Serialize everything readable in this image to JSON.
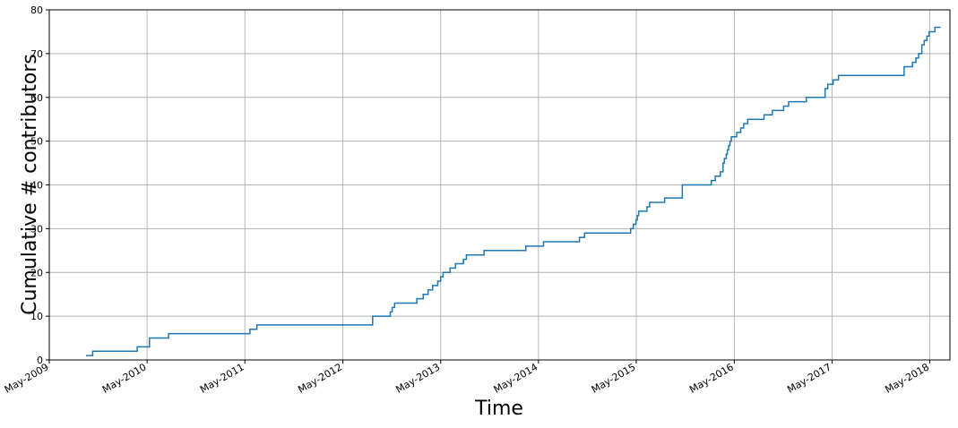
{
  "chart_data": {
    "type": "line",
    "title": "",
    "xlabel": "Time",
    "ylabel": "Cumulative # contributors",
    "x_axis_kind": "date",
    "xlim": [
      "2009-05-01",
      "2018-07-15"
    ],
    "ylim": [
      0,
      80
    ],
    "grid": true,
    "legend": "none",
    "colors": {
      "line": "#1f77b4",
      "grid": "#b0b0b0",
      "axis": "#000000"
    },
    "x_ticks": [
      {
        "date": "2009-05-01",
        "label": "May-2009"
      },
      {
        "date": "2010-05-01",
        "label": "May-2010"
      },
      {
        "date": "2011-05-01",
        "label": "May-2011"
      },
      {
        "date": "2012-05-01",
        "label": "May-2012"
      },
      {
        "date": "2013-05-01",
        "label": "May-2013"
      },
      {
        "date": "2014-05-01",
        "label": "May-2014"
      },
      {
        "date": "2015-05-01",
        "label": "May-2015"
      },
      {
        "date": "2016-05-01",
        "label": "May-2016"
      },
      {
        "date": "2017-05-01",
        "label": "May-2017"
      },
      {
        "date": "2018-05-01",
        "label": "May-2018"
      }
    ],
    "y_ticks": [
      {
        "value": 0,
        "label": "0"
      },
      {
        "value": 10,
        "label": "10"
      },
      {
        "value": 20,
        "label": "20"
      },
      {
        "value": 30,
        "label": "30"
      },
      {
        "value": 40,
        "label": "40"
      },
      {
        "value": 50,
        "label": "50"
      },
      {
        "value": 60,
        "label": "60"
      },
      {
        "value": 70,
        "label": "70"
      },
      {
        "value": 80,
        "label": "80"
      }
    ],
    "series": [
      {
        "step": "post",
        "x": [
          "2009-09-15",
          "2009-10-10",
          "2010-03-25",
          "2010-05-10",
          "2010-07-20",
          "2011-05-20",
          "2011-06-15",
          "2012-08-20",
          "2012-10-25",
          "2012-11-01",
          "2012-11-10",
          "2013-02-01",
          "2013-02-25",
          "2013-03-15",
          "2013-04-01",
          "2013-04-20",
          "2013-05-01",
          "2013-05-10",
          "2013-06-05",
          "2013-06-25",
          "2013-07-25",
          "2013-08-05",
          "2013-08-15",
          "2013-10-10",
          "2014-03-15",
          "2014-05-20",
          "2014-06-05",
          "2014-10-01",
          "2014-10-20",
          "2015-04-10",
          "2015-04-20",
          "2015-04-30",
          "2015-05-05",
          "2015-05-10",
          "2015-06-10",
          "2015-06-20",
          "2015-08-15",
          "2015-10-20",
          "2016-02-05",
          "2016-02-20",
          "2016-03-10",
          "2016-03-20",
          "2016-03-25",
          "2016-04-01",
          "2016-04-05",
          "2016-04-10",
          "2016-04-15",
          "2016-04-20",
          "2016-05-10",
          "2016-05-25",
          "2016-06-05",
          "2016-06-20",
          "2016-08-20",
          "2016-09-20",
          "2016-11-01",
          "2016-11-10",
          "2016-11-20",
          "2017-01-25",
          "2017-04-05",
          "2017-04-15",
          "2017-05-05",
          "2017-05-25",
          "2017-06-01",
          "2017-06-05",
          "2017-12-25",
          "2018-01-25",
          "2018-02-25",
          "2018-03-10",
          "2018-03-20",
          "2018-04-01",
          "2018-04-10",
          "2018-04-20",
          "2018-04-28",
          "2018-05-05",
          "2018-05-20",
          "2018-06-05",
          "2018-06-10"
        ],
        "y": [
          1,
          2,
          3,
          5,
          6,
          7,
          8,
          10,
          11,
          12,
          13,
          14,
          15,
          16,
          17,
          18,
          19,
          20,
          21,
          22,
          23,
          24,
          24,
          25,
          26,
          27,
          27,
          28,
          29,
          30,
          31,
          32,
          33,
          34,
          35,
          36,
          37,
          40,
          41,
          42,
          43,
          45,
          46,
          47,
          48,
          49,
          50,
          51,
          52,
          53,
          54,
          55,
          56,
          57,
          58,
          58,
          59,
          60,
          62,
          63,
          64,
          65,
          65,
          65,
          65,
          67,
          68,
          69,
          70,
          72,
          73,
          74,
          75,
          75,
          76,
          76,
          76
        ]
      }
    ]
  }
}
